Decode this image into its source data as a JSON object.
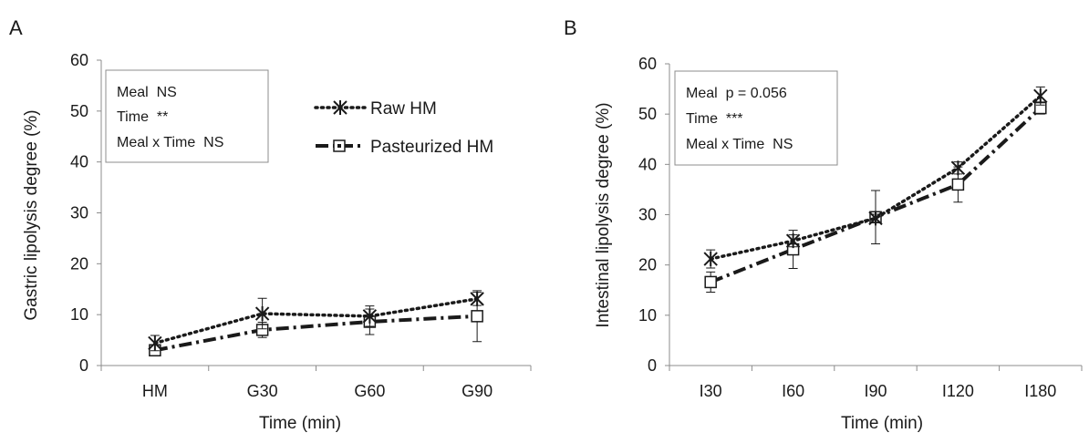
{
  "legend": {
    "entries": [
      {
        "label": "Raw HM",
        "style": "dotted",
        "marker": "star"
      },
      {
        "label": "Pasteurized HM",
        "style": "dashdot",
        "marker": "square"
      }
    ]
  },
  "chart_data": [
    {
      "type": "line",
      "panel_letter": "A",
      "xlabel": "Time (min)",
      "ylabel": "Gastric lipolysis degree (%)",
      "categories": [
        "HM",
        "G30",
        "G60",
        "G90"
      ],
      "ylim": [
        0,
        60
      ],
      "yticks": [
        0,
        10,
        20,
        30,
        40,
        50,
        60
      ],
      "grid": false,
      "annotation_lines": [
        "Meal  NS",
        "Time  **",
        "Meal x Time  NS"
      ],
      "series": [
        {
          "name": "Raw HM",
          "values": [
            4.4,
            10.2,
            9.7,
            13.1
          ],
          "errors": [
            1.5,
            3.0,
            2.0,
            1.3
          ]
        },
        {
          "name": "Pasteurized HM",
          "values": [
            3.0,
            7.0,
            8.6,
            9.7
          ],
          "errors": [
            0.6,
            1.5,
            2.5,
            5.0
          ]
        }
      ]
    },
    {
      "type": "line",
      "panel_letter": "B",
      "xlabel": "Time (min)",
      "ylabel": "Intestinal lipolysis degree (%)",
      "categories": [
        "I30",
        "I60",
        "I90",
        "I120",
        "I180"
      ],
      "ylim": [
        0,
        60
      ],
      "yticks": [
        0,
        10,
        20,
        30,
        40,
        50,
        60
      ],
      "grid": false,
      "annotation_lines": [
        "Meal  p = 0.056",
        "Time  ***",
        "Meal x Time  NS"
      ],
      "series": [
        {
          "name": "Raw HM",
          "values": [
            21.2,
            24.8,
            29.3,
            39.3,
            53.6
          ],
          "errors": [
            1.8,
            1.2,
            0.8,
            1.2,
            1.8
          ]
        },
        {
          "name": "Pasteurized HM",
          "values": [
            16.6,
            23.1,
            29.5,
            36.0,
            51.2
          ],
          "errors": [
            2.0,
            3.8,
            5.3,
            3.5,
            1.2
          ]
        }
      ]
    }
  ]
}
